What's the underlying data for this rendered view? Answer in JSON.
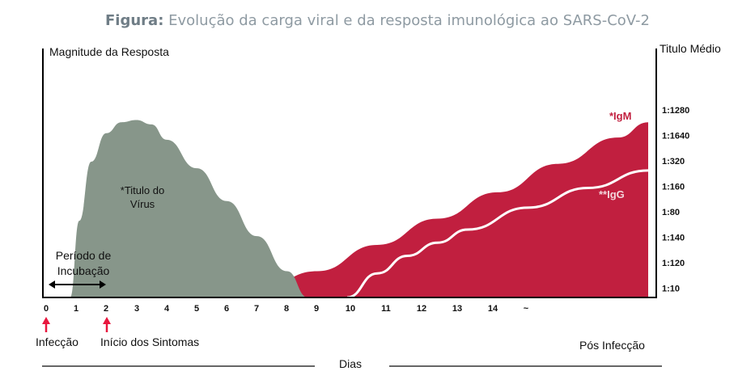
{
  "title": {
    "lead": "Figura:",
    "text": "Evolução da carga viral e da resposta imunológica ao SARS-CoV-2"
  },
  "colors": {
    "virus": "#87968a",
    "igm": "#c11f3f",
    "igg_line": "#ffffff",
    "igm_label": "#c11f3f",
    "igg_label": "#f3d6dc",
    "arrow_red": "#e8173e",
    "axis": "#000000"
  },
  "chart_data": {
    "type": "area",
    "title": "Evolução da carga viral e da resposta imunológica ao SARS-CoV-2",
    "xlabel": "Dias",
    "ylabel_left": "Magnitude da Resposta",
    "ylabel_right": "Titulo Médio",
    "x_ticks": [
      "0",
      "1",
      "2",
      "3",
      "4",
      "5",
      "6",
      "7",
      "8",
      "9",
      "10",
      "11",
      "12",
      "13",
      "14",
      "~"
    ],
    "y_right_ticks": [
      "1:1280",
      "1:1640",
      "1:320",
      "1:160",
      "1:80",
      "1:140",
      "1:120",
      "1:10"
    ],
    "xlim": [
      0,
      20
    ],
    "ylim": [
      0,
      1
    ],
    "series": [
      {
        "name": "*Titulo do Vírus",
        "x": [
          0.8,
          1.1,
          1.5,
          2.0,
          2.5,
          3.0,
          3.5,
          4.0,
          5.0,
          6.0,
          7.0,
          8.0,
          8.7
        ],
        "y": [
          0.0,
          0.35,
          0.62,
          0.75,
          0.8,
          0.81,
          0.79,
          0.72,
          0.59,
          0.44,
          0.28,
          0.12,
          0.0
        ]
      },
      {
        "name": "*IgM",
        "x": [
          5.5,
          7.0,
          9.0,
          11.0,
          13.0,
          15.0,
          17.0,
          19.0,
          20.0
        ],
        "y": [
          0.0,
          0.03,
          0.12,
          0.24,
          0.36,
          0.48,
          0.61,
          0.73,
          0.8
        ]
      },
      {
        "name": "**IgG",
        "x": [
          10.0,
          11.0,
          12.0,
          13.0,
          14.0,
          16.0,
          18.0,
          20.0
        ],
        "y": [
          0.0,
          0.11,
          0.19,
          0.25,
          0.31,
          0.41,
          0.5,
          0.58
        ]
      }
    ],
    "annotations": {
      "incubacao": "Período de Incubação",
      "infeccao": "Infecção",
      "inicio": "Início dos Sintomas",
      "pos_infeccao": "Pós Infecção"
    }
  },
  "labels": {
    "virus_line1": "*Titulo do",
    "virus_line2": "Vírus",
    "igm": "*IgM",
    "igg": "**IgG",
    "incubacao_line1": "Período de",
    "incubacao_line2": "Incubação"
  }
}
